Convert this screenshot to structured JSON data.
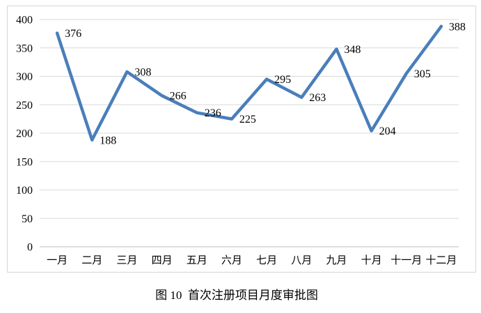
{
  "figure": {
    "caption": "图 10  首次注册项目月度审批图"
  },
  "chart_data": {
    "type": "line",
    "title": "图 10 首次注册项目月度审批图",
    "categories": [
      "一月",
      "二月",
      "三月",
      "四月",
      "五月",
      "六月",
      "七月",
      "八月",
      "九月",
      "十月",
      "十一月",
      "十二月"
    ],
    "values": [
      376,
      188,
      308,
      266,
      236,
      225,
      295,
      263,
      348,
      204,
      305,
      388
    ],
    "xlabel": "",
    "ylabel": "",
    "ylim": [
      0,
      400
    ],
    "ytick_step": 50,
    "grid": true,
    "legend": "none",
    "data_labels": true,
    "colors": {
      "line": "#4a7ebb",
      "gridline": "#d9d9d9",
      "axis_line": "#bfbfbf",
      "frame_border": "#d6d6d6",
      "text": "#000000",
      "background": "#ffffff"
    }
  }
}
